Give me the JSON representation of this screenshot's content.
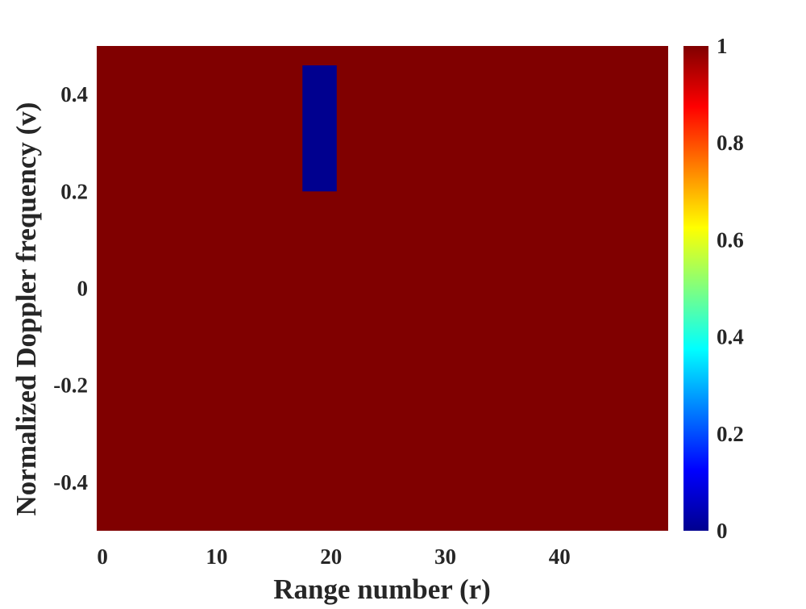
{
  "chart_data": {
    "type": "heatmap",
    "title": "",
    "xlabel": "Range number (r)",
    "ylabel": "Normalized Doppler frequency (v)",
    "xlim": [
      -0.5,
      49.5
    ],
    "ylim": [
      -0.5,
      0.5
    ],
    "xticks": [
      0,
      10,
      20,
      30,
      40
    ],
    "xtick_labels": [
      "0",
      "10",
      "20",
      "30",
      "40"
    ],
    "yticks": [
      -0.4,
      -0.2,
      0,
      0.2,
      0.4
    ],
    "ytick_labels": [
      "-0.4",
      "-0.2",
      "0",
      "0.2",
      "0.4"
    ],
    "background_value": 1,
    "cells": [
      {
        "x_range": [
          17.5,
          20.5
        ],
        "y_range": [
          0.2,
          0.46
        ],
        "value": 0
      }
    ],
    "colorbar": {
      "colormap": "jet",
      "range": [
        0,
        1
      ],
      "ticks": [
        0,
        0.2,
        0.4,
        0.6,
        0.8,
        1
      ],
      "tick_labels": [
        "0",
        "0.2",
        "0.4",
        "0.6",
        "0.8",
        "1"
      ]
    },
    "grid": false,
    "colors": {
      "high": "#800000",
      "low": "#00008f"
    }
  }
}
